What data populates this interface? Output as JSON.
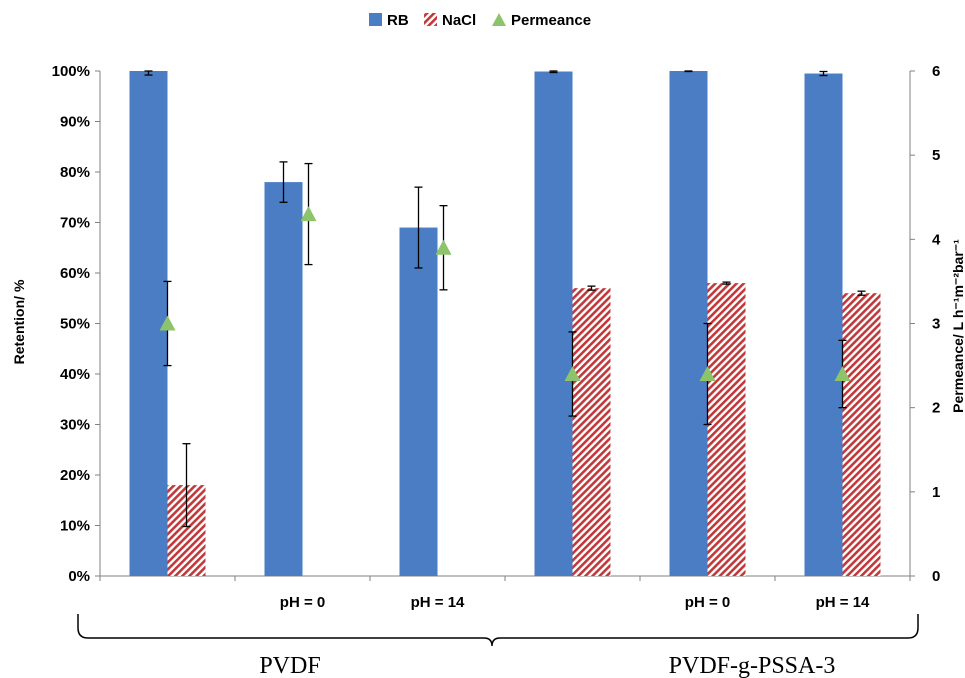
{
  "chart_data": {
    "type": "bar",
    "categories": [
      "",
      "pH = 0",
      "pH = 14",
      "",
      "pH = 0",
      "pH = 14"
    ],
    "groups": [
      {
        "label": "PVDF",
        "categories": [
          0,
          1,
          2
        ]
      },
      {
        "label": "PVDF-g-PSSA-3",
        "categories": [
          3,
          4,
          5
        ]
      }
    ],
    "series": [
      {
        "name": "RB",
        "type": "bar",
        "axis": "left",
        "color": "#4a7dc4",
        "values": [
          100,
          78,
          69,
          99.9,
          100,
          99.5
        ],
        "errors": [
          0.8,
          4,
          8,
          0.2,
          0.1,
          0.4
        ]
      },
      {
        "name": "NaCl",
        "type": "bar",
        "axis": "left",
        "color": "#c0393b",
        "pattern": "diagonal-hatch",
        "values": [
          18,
          null,
          null,
          57,
          58,
          56
        ],
        "errors": [
          8.2,
          null,
          null,
          0.4,
          0.2,
          0.4
        ]
      },
      {
        "name": "Permeance",
        "type": "scatter",
        "axis": "right",
        "color": "#8cc36b",
        "marker": "triangle",
        "values": [
          3.0,
          4.3,
          3.9,
          2.4,
          2.4,
          2.4
        ],
        "errors": [
          0.5,
          0.6,
          0.5,
          0.5,
          0.6,
          0.4
        ]
      }
    ],
    "ylabel": "Retention/ %",
    "y2label": "Permeance/ L h⁻¹m⁻²bar⁻¹",
    "ylim": [
      0,
      100
    ],
    "y2lim": [
      0,
      6
    ],
    "yticks": [
      "0%",
      "10%",
      "20%",
      "30%",
      "40%",
      "50%",
      "60%",
      "70%",
      "80%",
      "90%",
      "100%"
    ],
    "y2ticks": [
      "0",
      "1",
      "2",
      "3",
      "4",
      "5",
      "6"
    ],
    "legend_position": "top-center",
    "grid": false
  }
}
